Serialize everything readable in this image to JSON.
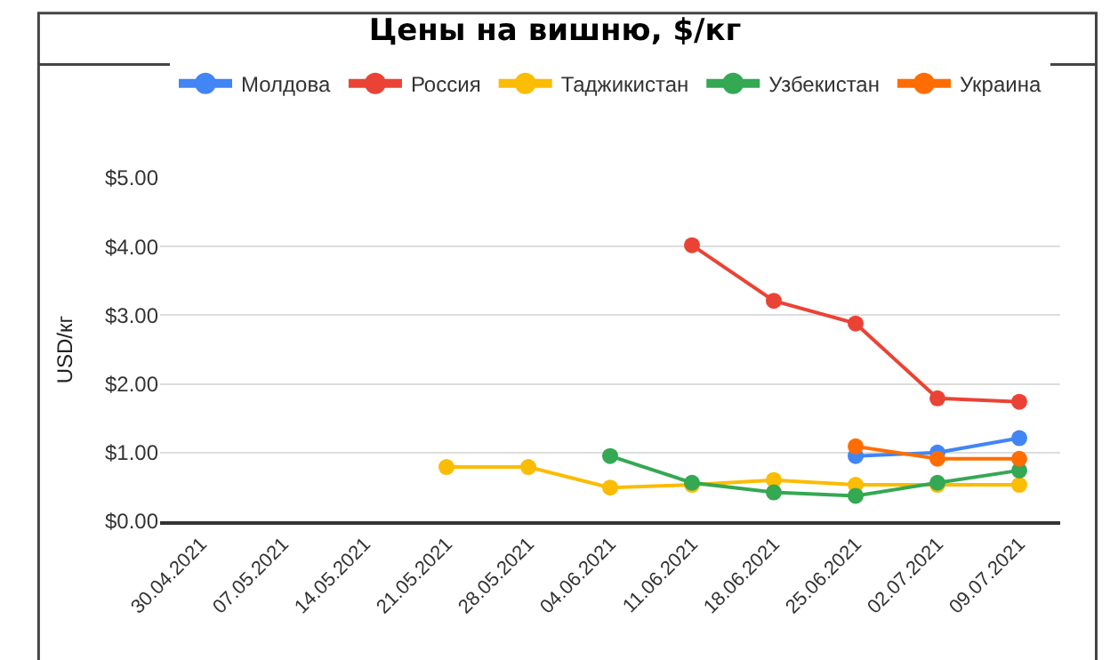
{
  "chart_data": {
    "type": "line",
    "title": "Цены на вишню, $/кг",
    "ylabel": "USD/кг",
    "categories": [
      "30.04.2021",
      "07.05.2021",
      "14.05.2021",
      "21.05.2021",
      "28.05.2021",
      "04.06.2021",
      "11.06.2021",
      "18.06.2021",
      "25.06.2021",
      "02.07.2021",
      "09.07.2021"
    ],
    "series": [
      {
        "name": "Молдова",
        "color": "#4285f4",
        "values": [
          null,
          null,
          null,
          null,
          null,
          null,
          null,
          null,
          0.95,
          1.0,
          1.21
        ]
      },
      {
        "name": "Россия",
        "color": "#ea4335",
        "values": [
          null,
          null,
          null,
          null,
          null,
          null,
          4.02,
          3.21,
          2.88,
          1.79,
          1.74
        ]
      },
      {
        "name": "Таджикистан",
        "color": "#fbbc04",
        "values": [
          null,
          null,
          null,
          0.79,
          0.79,
          0.49,
          0.53,
          0.6,
          0.53,
          0.53,
          0.53
        ]
      },
      {
        "name": "Узбекистан",
        "color": "#34a853",
        "values": [
          null,
          null,
          null,
          null,
          null,
          0.95,
          0.56,
          0.42,
          0.37,
          0.56,
          0.74
        ]
      },
      {
        "name": "Украина",
        "color": "#ff6d01",
        "values": [
          null,
          null,
          null,
          null,
          null,
          null,
          null,
          null,
          1.09,
          0.91,
          0.91
        ]
      }
    ],
    "ylim": [
      0,
      5
    ],
    "yticks": [
      {
        "value": 0,
        "label": "$0.00"
      },
      {
        "value": 1,
        "label": "$1.00"
      },
      {
        "value": 2,
        "label": "$2.00"
      },
      {
        "value": 3,
        "label": "$3.00"
      },
      {
        "value": 4,
        "label": "$4.00"
      },
      {
        "value": 5,
        "label": "$5.00"
      }
    ],
    "grid": "y",
    "legend": "top",
    "marker": "circle",
    "line_style": "solid"
  }
}
